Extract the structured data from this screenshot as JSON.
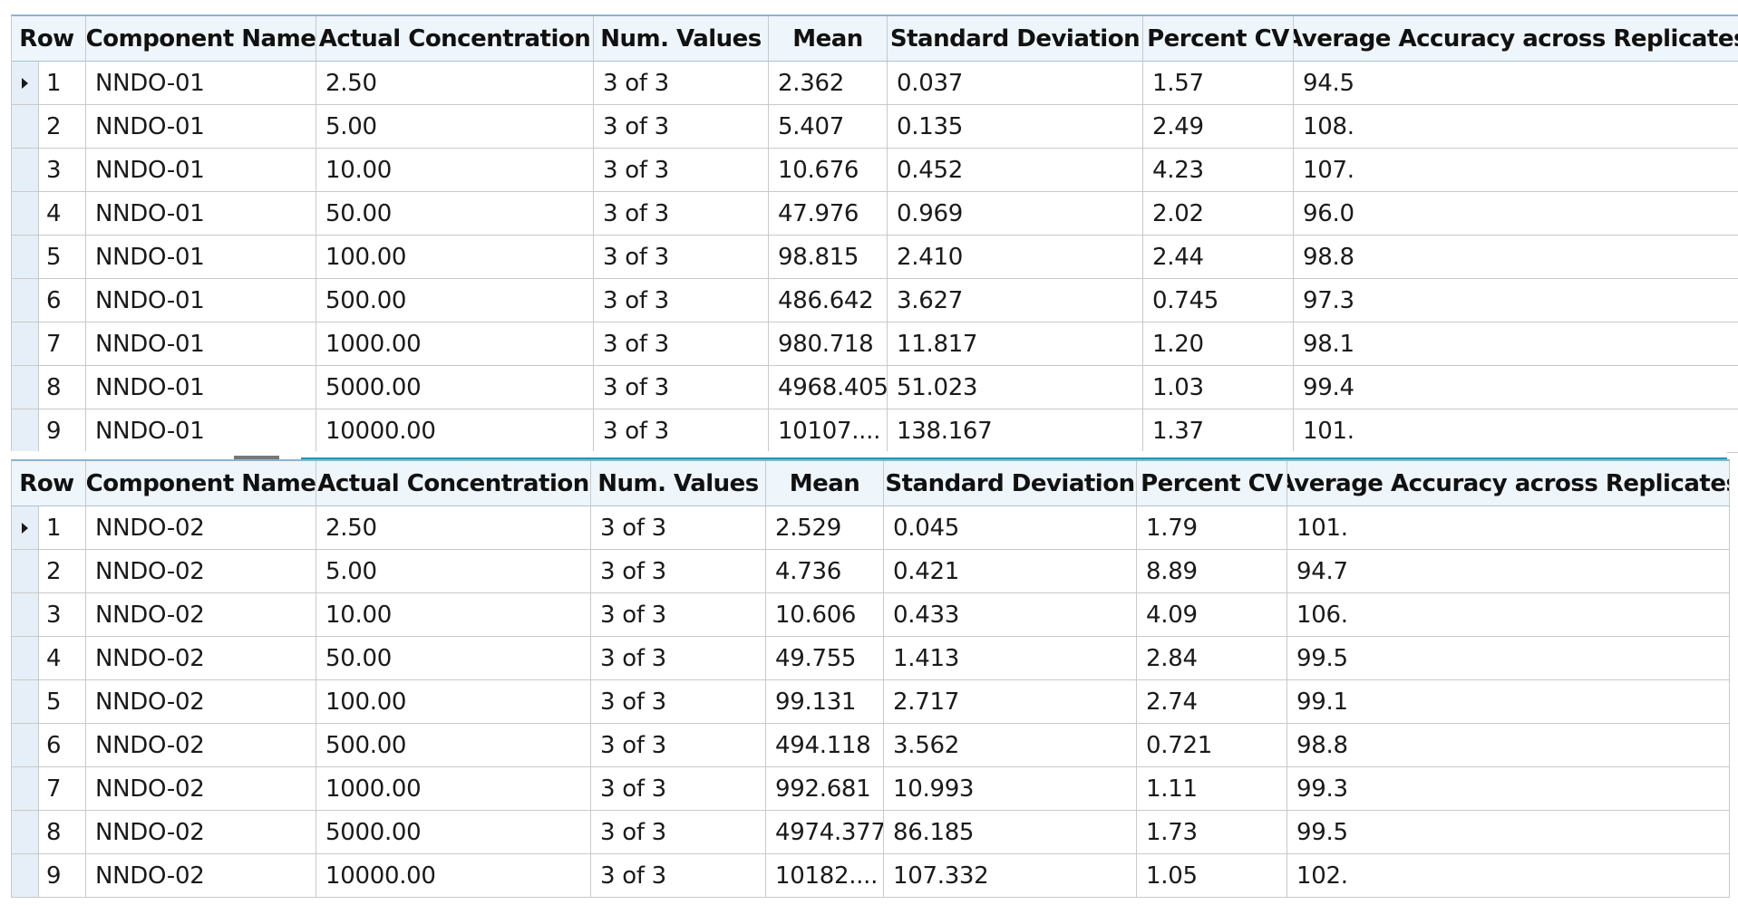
{
  "tables": [
    {
      "headers": [
        "Row",
        "Component Name",
        "Actual Concentration",
        "Num. Values",
        "Mean",
        "Standard Deviation",
        "Percent CV",
        "Average Accuracy across Replicates"
      ],
      "rows": [
        [
          "1",
          "NNDO-01",
          "2.50",
          "3 of 3",
          "2.362",
          "0.037",
          "1.57",
          "94.5"
        ],
        [
          "2",
          "NNDO-01",
          "5.00",
          "3 of 3",
          "5.407",
          "0.135",
          "2.49",
          "108."
        ],
        [
          "3",
          "NNDO-01",
          "10.00",
          "3 of 3",
          "10.676",
          "0.452",
          "4.23",
          "107."
        ],
        [
          "4",
          "NNDO-01",
          "50.00",
          "3 of 3",
          "47.976",
          "0.969",
          "2.02",
          "96.0"
        ],
        [
          "5",
          "NNDO-01",
          "100.00",
          "3 of 3",
          "98.815",
          "2.410",
          "2.44",
          "98.8"
        ],
        [
          "6",
          "NNDO-01",
          "500.00",
          "3 of 3",
          "486.642",
          "3.627",
          "0.745",
          "97.3"
        ],
        [
          "7",
          "NNDO-01",
          "1000.00",
          "3 of 3",
          "980.718",
          "11.817",
          "1.20",
          "98.1"
        ],
        [
          "8",
          "NNDO-01",
          "5000.00",
          "3 of 3",
          "4968.405",
          "51.023",
          "1.03",
          "99.4"
        ],
        [
          "9",
          "NNDO-01",
          "10000.00",
          "3 of 3",
          "10107....",
          "138.167",
          "1.37",
          "101."
        ]
      ]
    },
    {
      "headers": [
        "Row",
        "Component Name",
        "Actual Concentration",
        "Num. Values",
        "Mean",
        "Standard Deviation",
        "Percent CV",
        "Average Accuracy across Replicates"
      ],
      "rows": [
        [
          "1",
          "NNDO-02",
          "2.50",
          "3 of 3",
          "2.529",
          "0.045",
          "1.79",
          "101."
        ],
        [
          "2",
          "NNDO-02",
          "5.00",
          "3 of 3",
          "4.736",
          "0.421",
          "8.89",
          "94.7"
        ],
        [
          "3",
          "NNDO-02",
          "10.00",
          "3 of 3",
          "10.606",
          "0.433",
          "4.09",
          "106."
        ],
        [
          "4",
          "NNDO-02",
          "50.00",
          "3 of 3",
          "49.755",
          "1.413",
          "2.84",
          "99.5"
        ],
        [
          "5",
          "NNDO-02",
          "100.00",
          "3 of 3",
          "99.131",
          "2.717",
          "2.74",
          "99.1"
        ],
        [
          "6",
          "NNDO-02",
          "500.00",
          "3 of 3",
          "494.118",
          "3.562",
          "0.721",
          "98.8"
        ],
        [
          "7",
          "NNDO-02",
          "1000.00",
          "3 of 3",
          "992.681",
          "10.993",
          "1.11",
          "99.3"
        ],
        [
          "8",
          "NNDO-02",
          "5000.00",
          "3 of 3",
          "4974.377",
          "86.185",
          "1.73",
          "99.5"
        ],
        [
          "9",
          "NNDO-02",
          "10000.00",
          "3 of 3",
          "10182....",
          "107.332",
          "1.05",
          "102."
        ]
      ]
    }
  ],
  "current_row_icon": "current-row-triangle-icon",
  "colors": {
    "header_bg": "#eef5fb",
    "row_marker_bg": "#e6eff7",
    "grid_line": "#c9c9c9",
    "splitter_accent": "#2a8fb8"
  }
}
